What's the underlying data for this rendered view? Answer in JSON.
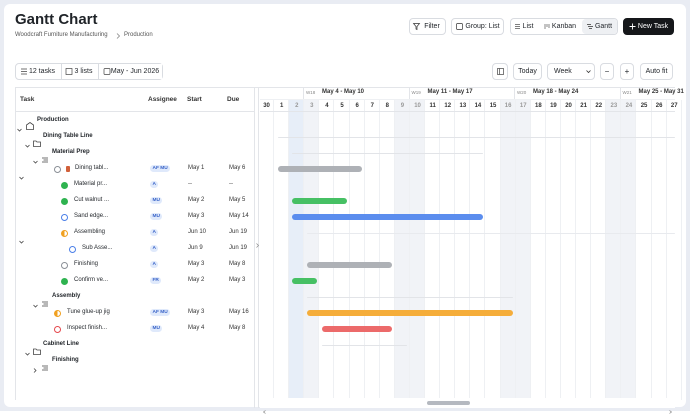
{
  "header": {
    "title": "Gantt Chart",
    "breadcrumb": [
      "Woodcraft Furniture Manufacturing",
      "Production"
    ]
  },
  "actions": {
    "filter": "Filter",
    "group": "Group: List",
    "views": [
      "List",
      "Kanban",
      "Gantt"
    ],
    "new_task": "New Task"
  },
  "toolbar": {
    "tasks": "12 tasks",
    "lists": "3 lists",
    "range": "May - Jun 2026",
    "today": "Today",
    "scale": "Week",
    "zoom_out": "−",
    "zoom_in": "+",
    "auto_fit": "Auto fit"
  },
  "table": {
    "columns": [
      "Task",
      "Assignee",
      "Start",
      "Due"
    ],
    "rows": [
      {
        "task": "Production"
      },
      {
        "task": "Dining Table Line"
      },
      {
        "task": "Material Prep"
      },
      {
        "task": "Dining tabl...",
        "assignee": "AF MU",
        "start": "May 1",
        "due": "May 6"
      },
      {
        "task": "Material pr...",
        "assignee": "A",
        "start": "--",
        "due": "--"
      },
      {
        "task": "Cut walnut ...",
        "assignee": "MU",
        "start": "May 2",
        "due": "May 5"
      },
      {
        "task": "Sand edge...",
        "assignee": "MU",
        "start": "May 3",
        "due": "May 14"
      },
      {
        "task": "Assembling",
        "assignee": "A",
        "start": "Jun 10",
        "due": "Jun 19"
      },
      {
        "task": "Sub Asse...",
        "assignee": "A",
        "start": "Jun 9",
        "due": "Jun 19"
      },
      {
        "task": "Finishing",
        "assignee": "A",
        "start": "May 3",
        "due": "May 8"
      },
      {
        "task": "Confirm ve...",
        "assignee": "FR",
        "start": "May 2",
        "due": "May 3"
      },
      {
        "task": "Assembly"
      },
      {
        "task": "Tune glue-up jig",
        "assignee": "AF MU",
        "start": "May 3",
        "due": "May 16"
      },
      {
        "task": "Inspect finish...",
        "assignee": "MU",
        "start": "May 4",
        "due": "May 8"
      },
      {
        "task": "Cabinet Line"
      },
      {
        "task": "Finishing"
      }
    ]
  },
  "timeline": {
    "weeks": [
      {
        "week": "W18",
        "range": "May 4 - May 10"
      },
      {
        "week": "W19",
        "range": "May 11 - May 17"
      },
      {
        "week": "W20",
        "range": "May 18 - May 24"
      },
      {
        "week": "W21",
        "range": "May 25 - May 31"
      }
    ],
    "days": [
      "30",
      "1",
      "2",
      "3",
      "4",
      "5",
      "6",
      "7",
      "8",
      "9",
      "10",
      "11",
      "12",
      "13",
      "14",
      "15",
      "16",
      "17",
      "18",
      "19",
      "20",
      "21",
      "22",
      "23",
      "24",
      "25",
      "26",
      "27"
    ]
  }
}
